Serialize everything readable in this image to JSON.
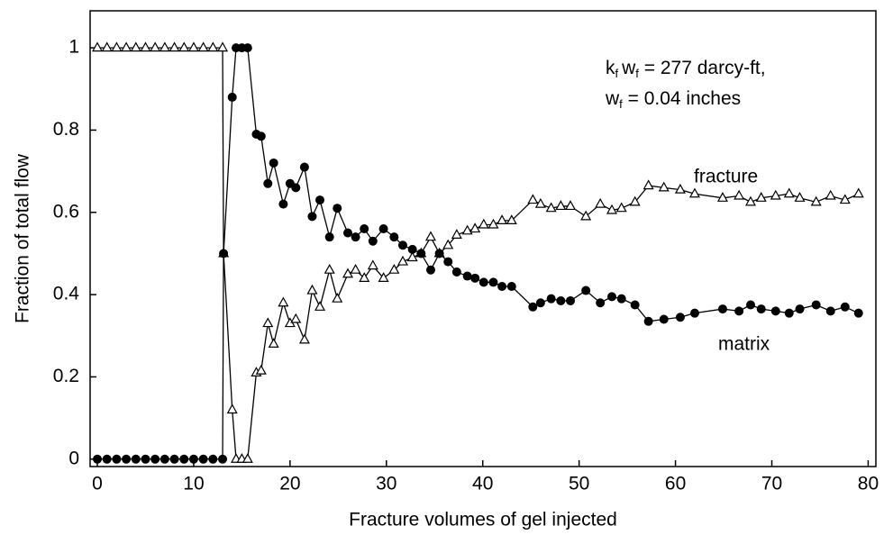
{
  "chart_data": {
    "type": "line",
    "xlabel": "Fracture volumes of gel injected",
    "ylabel": "Fraction of total flow",
    "annotation_lines": [
      [
        "k",
        "f",
        "w",
        "f",
        " = 277 darcy-ft,"
      ],
      [
        "w",
        "f",
        " = 0.04 inches"
      ]
    ],
    "series_labels": [
      "fracture",
      "matrix"
    ],
    "x": [
      0,
      1,
      2,
      3,
      4,
      5,
      6,
      7,
      8,
      9,
      10,
      11,
      12,
      13,
      13.1,
      14,
      14.4,
      15,
      15.6,
      16.5,
      17,
      17.7,
      18.3,
      19.3,
      20,
      20.6,
      21.5,
      22.3,
      23.1,
      24.1,
      24.9,
      26,
      26.8,
      27.7,
      28.6,
      29.7,
      30.8,
      31.7,
      32.7,
      33.6,
      34.6,
      35.5,
      36.4,
      37.3,
      38.4,
      39.2,
      40.1,
      41.1,
      42,
      43,
      45.2,
      46,
      47.1,
      48.1,
      49.1,
      50.7,
      52.2,
      53.4,
      54.4,
      55.8,
      57.2,
      58.8,
      60.5,
      62,
      64.9,
      66.6,
      67.8,
      68.9,
      70.4,
      71.8,
      72.9,
      74.6,
      76.1,
      77.6,
      79
    ],
    "series": [
      {
        "name": "fracture",
        "color": "#000000",
        "marker": "triangle",
        "values": [
          1,
          1,
          1,
          1,
          1,
          1,
          1,
          1,
          1,
          1,
          1,
          1,
          1,
          1,
          0.5,
          0.12,
          0,
          0,
          0,
          0.21,
          0.215,
          0.33,
          0.28,
          0.38,
          0.33,
          0.34,
          0.29,
          0.41,
          0.37,
          0.46,
          0.39,
          0.45,
          0.46,
          0.44,
          0.47,
          0.44,
          0.46,
          0.48,
          0.49,
          0.5,
          0.54,
          0.5,
          0.52,
          0.545,
          0.555,
          0.56,
          0.57,
          0.57,
          0.58,
          0.58,
          0.63,
          0.62,
          0.61,
          0.615,
          0.615,
          0.59,
          0.62,
          0.605,
          0.61,
          0.625,
          0.665,
          0.66,
          0.655,
          0.645,
          0.635,
          0.64,
          0.625,
          0.635,
          0.64,
          0.645,
          0.635,
          0.625,
          0.64,
          0.63,
          0.645
        ]
      },
      {
        "name": "matrix",
        "color": "#000000",
        "marker": "circle",
        "values": [
          0,
          0,
          0,
          0,
          0,
          0,
          0,
          0,
          0,
          0,
          0,
          0,
          0,
          0,
          0.5,
          0.88,
          1,
          1,
          1,
          0.79,
          0.785,
          0.67,
          0.72,
          0.62,
          0.67,
          0.66,
          0.71,
          0.59,
          0.63,
          0.54,
          0.61,
          0.55,
          0.54,
          0.56,
          0.53,
          0.56,
          0.54,
          0.52,
          0.51,
          0.5,
          0.46,
          0.5,
          0.48,
          0.455,
          0.445,
          0.44,
          0.43,
          0.43,
          0.42,
          0.42,
          0.37,
          0.38,
          0.39,
          0.385,
          0.385,
          0.41,
          0.38,
          0.395,
          0.39,
          0.375,
          0.335,
          0.34,
          0.345,
          0.355,
          0.365,
          0.36,
          0.375,
          0.365,
          0.36,
          0.355,
          0.365,
          0.375,
          0.36,
          0.37,
          0.355
        ]
      }
    ],
    "xlim": [
      -0.75,
      80.8
    ],
    "ylim": [
      -0.018,
      1.09
    ],
    "xticks": [
      0,
      10,
      20,
      30,
      40,
      50,
      60,
      70,
      80
    ],
    "yticks": [
      0,
      0.2,
      0.4,
      0.6,
      0.8,
      1
    ],
    "grid": false
  }
}
